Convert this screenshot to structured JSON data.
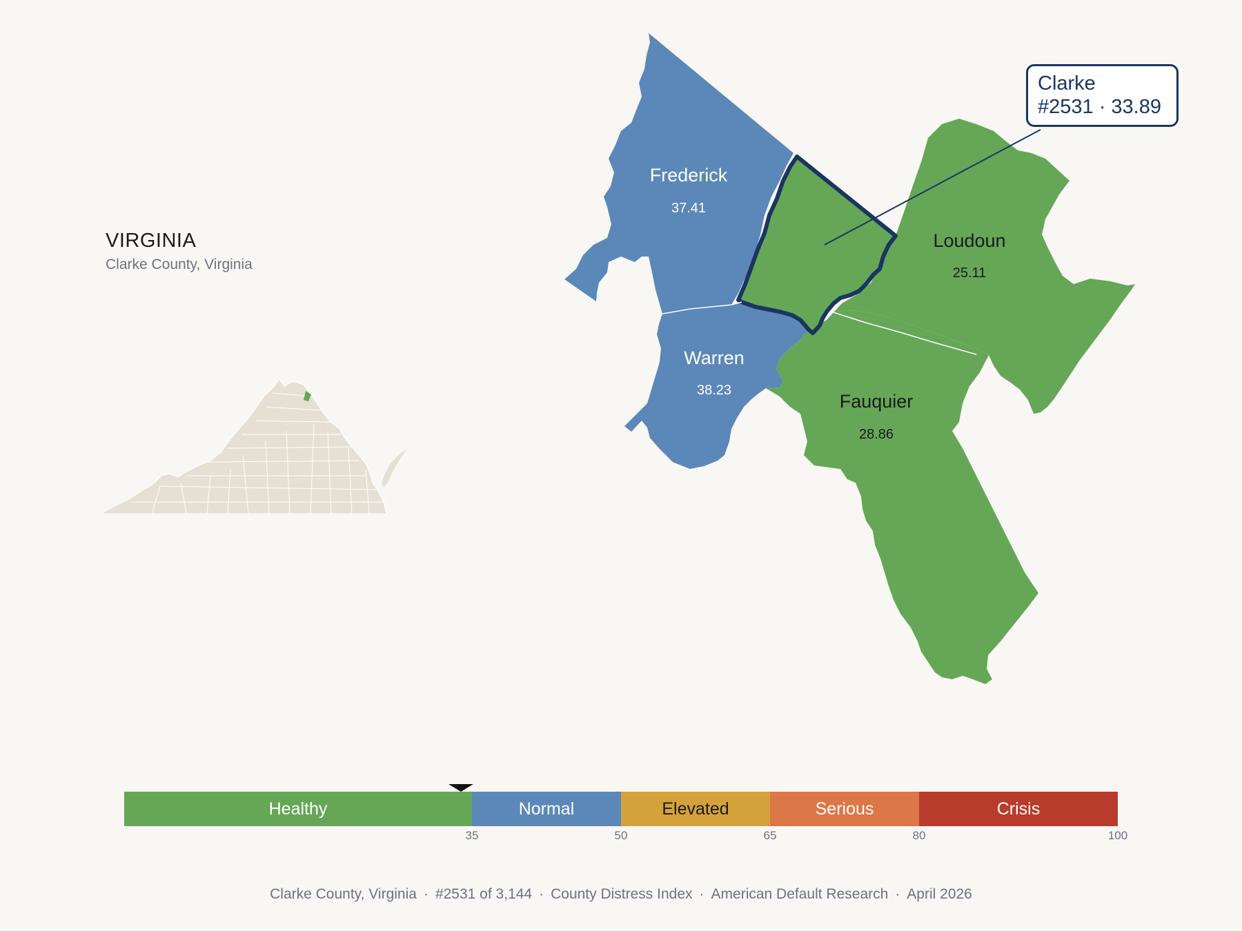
{
  "state": {
    "title": "VIRGINIA",
    "subtitle": "Clarke County, Virginia"
  },
  "counties": {
    "frederick": {
      "name": "Frederick",
      "score": "37.41",
      "fill": "#5b88b8"
    },
    "warren": {
      "name": "Warren",
      "score": "38.23",
      "fill": "#5b88b8"
    },
    "loudoun": {
      "name": "Loudoun",
      "score": "25.11",
      "fill": "#65a757"
    },
    "fauquier": {
      "name": "Fauquier",
      "score": "28.86",
      "fill": "#65a757"
    },
    "clarke": {
      "name": "Clarke",
      "score": "33.89",
      "fill": "#65a757",
      "outline": "#1a3560"
    }
  },
  "callout": {
    "line1": "Clarke",
    "line2": "#2531 · 33.89"
  },
  "scale": {
    "segments": [
      {
        "label": "Healthy",
        "from": 0,
        "to": 35,
        "color": "#65a757",
        "text_color": "#ffffff"
      },
      {
        "label": "Normal",
        "from": 35,
        "to": 50,
        "color": "#5b88b8",
        "text_color": "#ffffff"
      },
      {
        "label": "Elevated",
        "from": 50,
        "to": 65,
        "color": "#d4a23a",
        "text_color": "#1a1a1a"
      },
      {
        "label": "Serious",
        "from": 65,
        "to": 80,
        "color": "#dc7748",
        "text_color": "#ffffff"
      },
      {
        "label": "Crisis",
        "from": 80,
        "to": 100,
        "color": "#b73c2c",
        "text_color": "#ffffff"
      }
    ],
    "ticks": [
      "35",
      "50",
      "65",
      "80",
      "100"
    ],
    "marker_value": 33.89
  },
  "footer": {
    "place": "Clarke County, Virginia",
    "rank": "#2531 of 3,144",
    "index": "County Distress Index",
    "org": "American Default Research",
    "date": "April 2026",
    "separator": "·"
  },
  "colors": {
    "background": "#f9f7f4",
    "inset_state": "#e6e0d4",
    "inset_highlight": "#65a757"
  }
}
